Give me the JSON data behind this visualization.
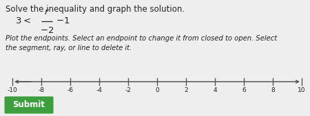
{
  "title": "Solve the inequality and graph the solution.",
  "math_prefix": "3 < ",
  "math_frac_num": "r",
  "math_frac_den": "-2",
  "math_suffix": "- 1",
  "instruction": "Plot the endpoints. Select an endpoint to change it from closed to open. Select\nthe segment, ray, or line to delete it.",
  "number_line_min": -10,
  "number_line_max": 10,
  "tick_labels": [
    -10,
    -8,
    -6,
    -4,
    -2,
    0,
    2,
    4,
    6,
    8,
    10
  ],
  "background_color": "#eeeeee",
  "text_color": "#222222",
  "submit_bg": "#3d9e3d",
  "submit_text": "Submit",
  "submit_text_color": "#ffffff",
  "title_fontsize": 8.5,
  "instr_fontsize": 7.2,
  "math_fontsize": 9.5,
  "tick_fontsize": 6.5
}
